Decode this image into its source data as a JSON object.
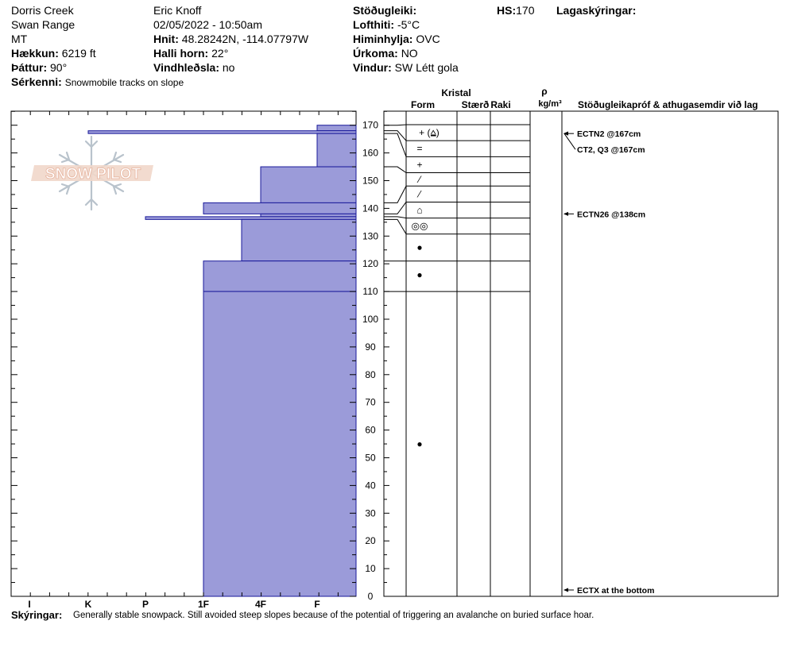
{
  "header": {
    "location": "Dorris Creek",
    "range": "Swan Range",
    "state": "MT",
    "elevation_label": "Hækkun:",
    "elevation_value": "6219 ft",
    "aspect_label": "Þáttur:",
    "aspect_value": "90°",
    "features_label": "Sérkenni:",
    "features_value": "Snowmobile tracks on slope",
    "observer": "Eric Knoff",
    "datetime": "02/05/2022 - 10:50am",
    "coords_label": "Hnit:",
    "coords_value": "48.28242N, -114.07797W",
    "slope_label": "Halli horn:",
    "slope_value": "22°",
    "wind_loading_label": "Vindhleðsla:",
    "wind_loading_value": "no",
    "stability_label": "Stöðugleiki:",
    "stability_value": "",
    "air_temp_label": "Lofthiti:",
    "air_temp_value": "-5°C",
    "sky_label": "Himinhylja:",
    "sky_value": "OVC",
    "precip_label": "Úrkoma:",
    "precip_value": "NO",
    "wind_label": "Vindur:",
    "wind_value": "SW Létt gola",
    "hs_label": "HS:",
    "hs_value": "170",
    "layer_notes_label": "Lagaskýringar:"
  },
  "logo_text": "SNOW PILOT",
  "columns": {
    "crystal": "Kristal",
    "form": "Form",
    "size": "Stærð",
    "moisture": "Raki",
    "rho": "ρ",
    "density_unit": "kg/m³",
    "tests_header": "Stöðugleikapróf & athugasemdir við lag"
  },
  "footer": {
    "label": "Skýringar:",
    "text": "Generally stable snowpack. Still avoided steep slopes because of the potential of triggering an avalanche on buried surface hoar."
  },
  "colors": {
    "hardness_fill": "#9b9bd9",
    "hardness_stroke": "#1a1a9a"
  },
  "chart_data": {
    "type": "bar",
    "orientation": "horizontal",
    "y_axis_ticks": [
      0,
      10,
      20,
      30,
      40,
      50,
      60,
      70,
      80,
      90,
      100,
      110,
      120,
      130,
      140,
      150,
      160,
      170
    ],
    "ylim": [
      0,
      175
    ],
    "hardness_scale": [
      "I",
      "K",
      "P",
      "1F",
      "4F",
      "F"
    ],
    "hardness_layers": [
      {
        "top": 170,
        "bottom": 168,
        "hardness": "F"
      },
      {
        "top": 168,
        "bottom": 167,
        "hardness": "K"
      },
      {
        "top": 167,
        "bottom": 155,
        "hardness": "F"
      },
      {
        "top": 155,
        "bottom": 142,
        "hardness": "4F"
      },
      {
        "top": 142,
        "bottom": 138,
        "hardness": "1F"
      },
      {
        "top": 138,
        "bottom": 137,
        "hardness": "4F"
      },
      {
        "top": 137,
        "bottom": 136,
        "hardness": "P"
      },
      {
        "top": 136,
        "bottom": 121,
        "hardness": "4F+"
      },
      {
        "top": 121,
        "bottom": 110,
        "hardness": "1F"
      },
      {
        "top": 110,
        "bottom": 0,
        "hardness": "1F"
      }
    ],
    "layer_boundaries": [
      170,
      164,
      158,
      152,
      147,
      141,
      135,
      129,
      121,
      110
    ],
    "boundary_sources": [
      170,
      168,
      167,
      155,
      142,
      138,
      137,
      136,
      121,
      110
    ],
    "crystal_symbols": [
      {
        "symbol": "+ (⩠)",
        "row": 0
      },
      {
        "symbol": "=",
        "row": 1
      },
      {
        "symbol": "+",
        "row": 2
      },
      {
        "symbol": "⁄",
        "row": 3
      },
      {
        "symbol": "⁄",
        "row": 4
      },
      {
        "symbol": "⌂",
        "row": 5
      },
      {
        "symbol": "◎◎",
        "row": 6
      },
      {
        "symbol": "●",
        "height": 126
      },
      {
        "symbol": "●",
        "height": 116
      },
      {
        "symbol": "●",
        "height": 55
      }
    ],
    "tests": [
      {
        "text": "ECTN2 @167cm",
        "height": 167
      },
      {
        "text": "CT2, Q3 @167cm",
        "height": 167,
        "offset": true
      },
      {
        "text": "ECTN26 @138cm",
        "height": 138
      },
      {
        "text": "ECTX  at the bottom",
        "height": 0
      }
    ]
  }
}
